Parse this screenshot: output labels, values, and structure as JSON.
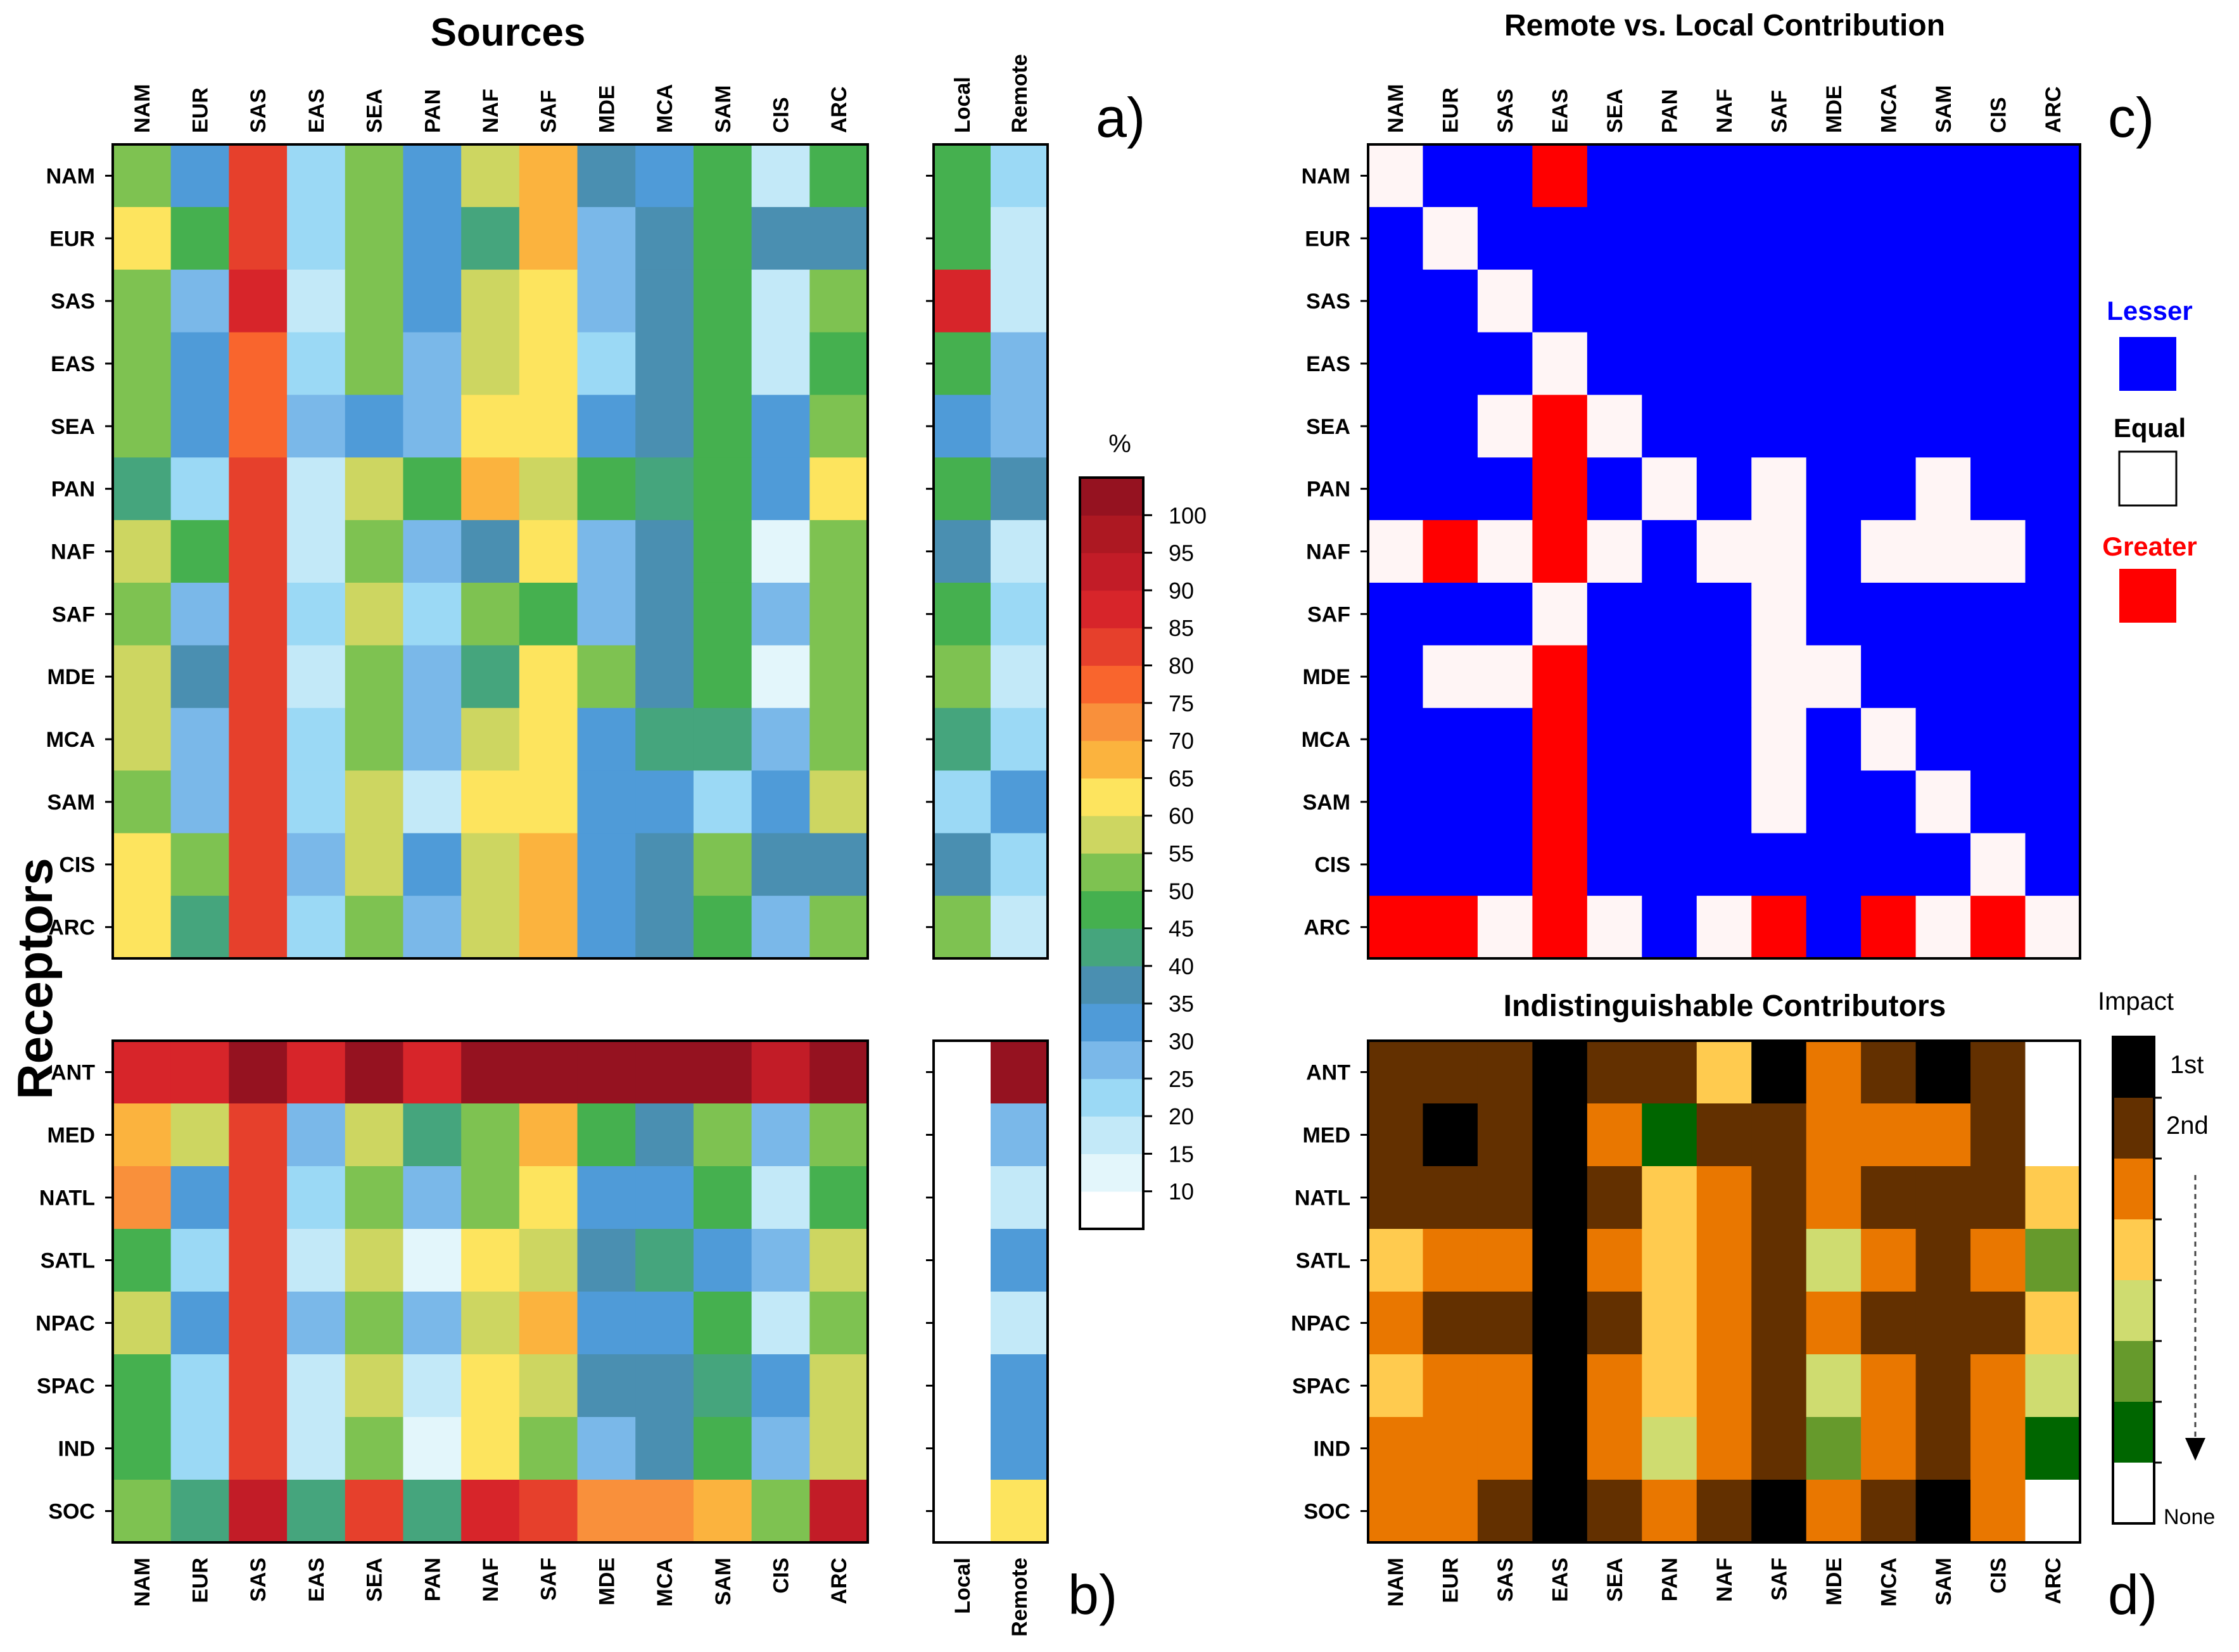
{
  "colors": {
    "scale": [
      "#ffffff",
      "#e3f6fb",
      "#c3e9f8",
      "#9bd9f5",
      "#7ab8e9",
      "#4f9bd8",
      "#4a8fb1",
      "#45a57d",
      "#45b04f",
      "#7ec251",
      "#cdd661",
      "#fde45e",
      "#fbb33e",
      "#f9903b",
      "#f9652d",
      "#e6402c",
      "#d7252a",
      "#c21c27",
      "#ad1822",
      "#951220"
    ],
    "remote_local": {
      "L": "#0000ff",
      "E": "#fff5f5",
      "G": "#ff0000"
    },
    "impact": {
      "1": "#000000",
      "2": "#633000",
      "3": "#e97700",
      "4": "#ffcb4f",
      "5": "#cfdc70",
      "6": "#669a2c",
      "7": "#006600",
      "0": "#ffffff"
    }
  },
  "labels": {
    "sources_title": "Sources",
    "receptors_title": "Receptors",
    "rl_title": "Remote vs. Local Contribution",
    "ind_title": "Indistinguishable Contributors",
    "panel_a": "a)",
    "panel_b": "b)",
    "panel_c": "c)",
    "panel_d": "d)",
    "local": "Local",
    "remote": "Remote",
    "percent": "%",
    "lesser": "Lesser",
    "equal": "Equal",
    "greater": "Greater",
    "impact": "Impact",
    "first": "1st",
    "second": "2nd",
    "none": "None"
  },
  "chart_data": [
    {
      "type": "heatmap",
      "id": "a",
      "title": "Sources",
      "xlabel": "Sources",
      "ylabel": "Receptors",
      "units": "%",
      "value_bins": "code k = percentage bin [5k, 5k+5)",
      "sources": [
        "NAM",
        "EUR",
        "SAS",
        "EAS",
        "SEA",
        "PAN",
        "NAF",
        "SAF",
        "MDE",
        "MCA",
        "SAM",
        "CIS",
        "ARC"
      ],
      "receptors": [
        "NAM",
        "EUR",
        "SAS",
        "EAS",
        "SEA",
        "PAN",
        "NAF",
        "SAF",
        "MDE",
        "MCA",
        "SAM",
        "CIS",
        "ARC"
      ],
      "values": [
        [
          9,
          5,
          15,
          3,
          9,
          5,
          10,
          12,
          6,
          5,
          8,
          2,
          8
        ],
        [
          11,
          8,
          15,
          3,
          9,
          5,
          7,
          12,
          4,
          6,
          8,
          6,
          6
        ],
        [
          9,
          4,
          16,
          2,
          9,
          5,
          10,
          11,
          4,
          6,
          8,
          2,
          9
        ],
        [
          9,
          5,
          14,
          3,
          9,
          4,
          10,
          11,
          3,
          6,
          8,
          2,
          8
        ],
        [
          9,
          5,
          14,
          4,
          5,
          4,
          11,
          11,
          5,
          6,
          8,
          5,
          9
        ],
        [
          7,
          3,
          15,
          2,
          10,
          8,
          12,
          10,
          8,
          7,
          8,
          5,
          11
        ],
        [
          10,
          8,
          15,
          2,
          9,
          4,
          6,
          11,
          4,
          6,
          8,
          1,
          9
        ],
        [
          9,
          4,
          15,
          3,
          10,
          3,
          9,
          8,
          4,
          6,
          8,
          4,
          9
        ],
        [
          10,
          6,
          15,
          2,
          9,
          4,
          7,
          11,
          9,
          6,
          8,
          1,
          9
        ],
        [
          10,
          4,
          15,
          3,
          9,
          4,
          10,
          11,
          5,
          7,
          7,
          4,
          9
        ],
        [
          9,
          4,
          15,
          3,
          10,
          2,
          11,
          11,
          5,
          5,
          3,
          5,
          10
        ],
        [
          11,
          9,
          15,
          4,
          10,
          5,
          10,
          12,
          5,
          6,
          9,
          6,
          6
        ],
        [
          11,
          7,
          15,
          3,
          9,
          4,
          10,
          12,
          5,
          6,
          8,
          4,
          9
        ]
      ],
      "local": [
        8,
        8,
        16,
        8,
        5,
        8,
        6,
        8,
        9,
        7,
        3,
        6,
        9
      ],
      "remote": [
        3,
        2,
        2,
        4,
        4,
        6,
        2,
        3,
        2,
        3,
        5,
        3,
        2
      ],
      "colorbar": {
        "ticks": [
          10,
          15,
          20,
          25,
          30,
          35,
          40,
          45,
          50,
          55,
          60,
          65,
          70,
          75,
          80,
          85,
          90,
          95,
          100
        ],
        "label": "%"
      }
    },
    {
      "type": "heatmap",
      "id": "b",
      "units": "%",
      "sources": [
        "NAM",
        "EUR",
        "SAS",
        "EAS",
        "SEA",
        "PAN",
        "NAF",
        "SAF",
        "MDE",
        "MCA",
        "SAM",
        "CIS",
        "ARC"
      ],
      "receptors": [
        "ANT",
        "MED",
        "NATL",
        "SATL",
        "NPAC",
        "SPAC",
        "IND",
        "SOC"
      ],
      "values": [
        [
          16,
          16,
          19,
          16,
          19,
          16,
          19,
          19,
          19,
          19,
          19,
          17,
          19
        ],
        [
          12,
          10,
          15,
          4,
          10,
          7,
          9,
          12,
          8,
          6,
          9,
          4,
          9
        ],
        [
          13,
          5,
          15,
          3,
          9,
          4,
          9,
          11,
          5,
          5,
          8,
          2,
          8
        ],
        [
          8,
          3,
          15,
          2,
          10,
          1,
          11,
          10,
          6,
          7,
          5,
          4,
          10
        ],
        [
          10,
          5,
          15,
          4,
          9,
          4,
          10,
          12,
          5,
          5,
          8,
          2,
          9
        ],
        [
          8,
          3,
          15,
          2,
          10,
          2,
          11,
          10,
          6,
          6,
          7,
          5,
          10
        ],
        [
          8,
          3,
          15,
          2,
          9,
          1,
          11,
          9,
          4,
          6,
          8,
          4,
          10
        ],
        [
          9,
          7,
          17,
          7,
          15,
          7,
          16,
          15,
          13,
          13,
          12,
          9,
          17
        ]
      ],
      "local": [
        0,
        0,
        0,
        0,
        0,
        0,
        0,
        0
      ],
      "remote": [
        19,
        4,
        2,
        5,
        2,
        5,
        5,
        11
      ]
    },
    {
      "type": "heatmap",
      "id": "c",
      "title": "Remote vs. Local Contribution",
      "categories": {
        "L": "Lesser",
        "E": "Equal",
        "G": "Greater"
      },
      "sources": [
        "NAM",
        "EUR",
        "SAS",
        "EAS",
        "SEA",
        "PAN",
        "NAF",
        "SAF",
        "MDE",
        "MCA",
        "SAM",
        "CIS",
        "ARC"
      ],
      "receptors": [
        "NAM",
        "EUR",
        "SAS",
        "EAS",
        "SEA",
        "PAN",
        "NAF",
        "SAF",
        "MDE",
        "MCA",
        "SAM",
        "CIS",
        "ARC"
      ],
      "values": [
        "ELLGLLLLLLLLL",
        "LELLLLLLLLLLL",
        "LLELLLLLLLLLL",
        "LLLELLLLLLLLL",
        "LLEGELLLLLLLL",
        "LLLGLELELLELL",
        "EGEGELEELEEEL",
        "LLLELLLELLLLL",
        "LEEGLLLEELLLL",
        "LLLGLLLELELLL",
        "LLLGLLLELLELL",
        "LLLGLLLLLLLEL",
        "GGEGELEGLGEGE"
      ]
    },
    {
      "type": "heatmap",
      "id": "d",
      "title": "Indistinguishable Contributors",
      "categories": {
        "1": "1st",
        "2": "2nd",
        "0": "None"
      },
      "sources": [
        "NAM",
        "EUR",
        "SAS",
        "EAS",
        "SEA",
        "PAN",
        "NAF",
        "SAF",
        "MDE",
        "MCA",
        "SAM",
        "CIS",
        "ARC"
      ],
      "receptors": [
        "ANT",
        "MED",
        "NATL",
        "SATL",
        "NPAC",
        "SPAC",
        "IND",
        "SOC"
      ],
      "values": [
        [
          2,
          2,
          2,
          1,
          2,
          2,
          4,
          1,
          3,
          2,
          1,
          2,
          0
        ],
        [
          2,
          1,
          2,
          1,
          3,
          7,
          2,
          2,
          3,
          3,
          3,
          2,
          0
        ],
        [
          2,
          2,
          2,
          1,
          2,
          4,
          3,
          2,
          3,
          2,
          2,
          2,
          4
        ],
        [
          4,
          3,
          3,
          1,
          3,
          4,
          3,
          2,
          5,
          3,
          2,
          3,
          6
        ],
        [
          3,
          2,
          2,
          1,
          2,
          4,
          3,
          2,
          3,
          2,
          2,
          2,
          4
        ],
        [
          4,
          3,
          3,
          1,
          3,
          4,
          3,
          2,
          5,
          3,
          2,
          3,
          5
        ],
        [
          3,
          3,
          3,
          1,
          3,
          5,
          3,
          2,
          6,
          3,
          2,
          3,
          7
        ],
        [
          3,
          3,
          2,
          1,
          2,
          3,
          2,
          1,
          3,
          2,
          1,
          3,
          0
        ]
      ],
      "legend": [
        "1st",
        "2nd",
        "",
        "",
        "",
        "",
        "",
        "None"
      ]
    }
  ]
}
